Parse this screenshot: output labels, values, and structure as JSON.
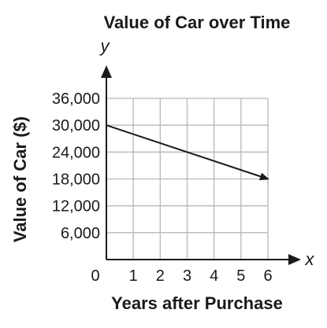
{
  "chart_data": {
    "type": "line",
    "title": "Value of Car over Time",
    "xlabel": "Years after Purchase",
    "ylabel": "Value of Car ($)",
    "x_axis_variable": "x",
    "y_axis_variable": "y",
    "xlim": [
      0,
      6
    ],
    "ylim": [
      0,
      36000
    ],
    "x_ticks": [
      1,
      2,
      3,
      4,
      5,
      6
    ],
    "x_tick_labels": [
      "1",
      "2",
      "3",
      "4",
      "5",
      "6"
    ],
    "y_ticks": [
      6000,
      12000,
      18000,
      24000,
      30000,
      36000
    ],
    "y_tick_labels": [
      "6,000",
      "12,000",
      "18,000",
      "24,000",
      "30,000",
      "36,000"
    ],
    "origin_label": "0",
    "grid": true,
    "series": [
      {
        "x": [
          0,
          6
        ],
        "y": [
          30000,
          18000
        ],
        "end_arrow": true,
        "color": "#1a1a1a"
      }
    ]
  }
}
